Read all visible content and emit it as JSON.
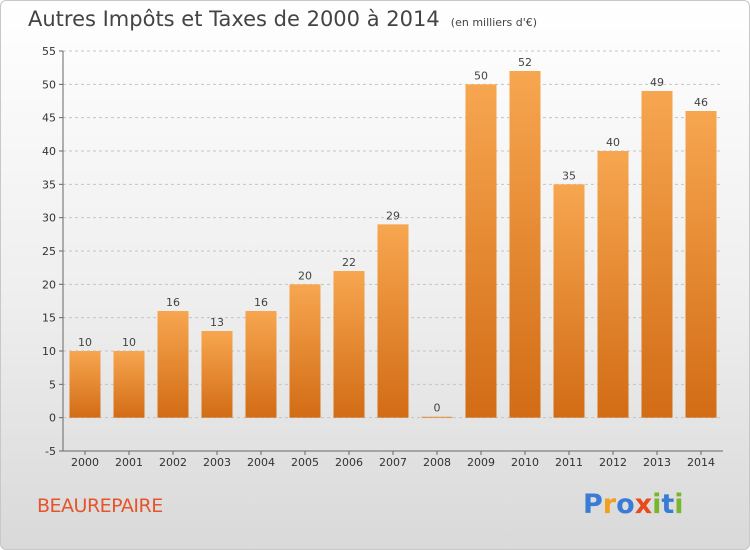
{
  "chart_data": {
    "type": "bar",
    "title": "Autres Impôts et Taxes de 2000 à 2014",
    "unit": "(en milliers d'€)",
    "categories": [
      "2000",
      "2001",
      "2002",
      "2003",
      "2004",
      "2005",
      "2006",
      "2007",
      "2008",
      "2009",
      "2010",
      "2011",
      "2012",
      "2013",
      "2014"
    ],
    "values": [
      10,
      10,
      16,
      13,
      16,
      20,
      22,
      29,
      0,
      50,
      52,
      35,
      40,
      49,
      46
    ],
    "ylim": [
      -5,
      55
    ],
    "yticks": [
      -5,
      0,
      5,
      10,
      15,
      20,
      25,
      30,
      35,
      40,
      45,
      50,
      55
    ],
    "grid": "horizontal dashed",
    "bar_color": "#f08c2a"
  },
  "commune": "BEAUREPAIRE",
  "logo": {
    "letters": [
      "P",
      "r",
      "o",
      "x",
      "i",
      "t",
      "i"
    ],
    "colors": [
      "#3a7bd5",
      "#f0a020",
      "#3a7bd5",
      "#e84a1c",
      "#79b62f",
      "#3a7bd5",
      "#79b62f"
    ]
  }
}
